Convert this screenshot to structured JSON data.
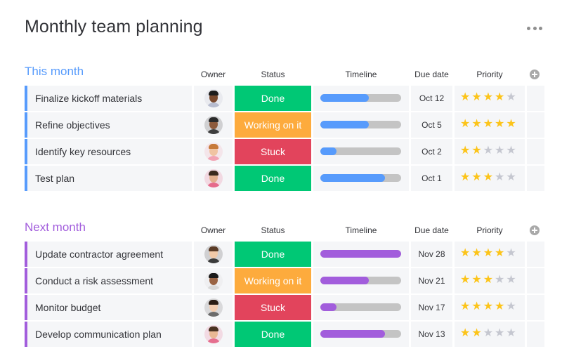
{
  "page": {
    "title": "Monthly team planning"
  },
  "columns": {
    "owner": "Owner",
    "status": "Status",
    "timeline": "Timeline",
    "due_date": "Due date",
    "priority": "Priority"
  },
  "colors": {
    "this_month": "#579bfc",
    "next_month": "#a25ddc",
    "done": "#00c875",
    "working": "#fdab3d",
    "stuck": "#e2445c",
    "star_on": "#fcc419",
    "star_off": "#c5c7d0"
  },
  "groups": [
    {
      "title": "This month",
      "color": "#579bfc",
      "rows": [
        {
          "name": "Finalize kickoff materials",
          "owner_icon": "man-avatar-icon",
          "status": "Done",
          "status_color": "#00c875",
          "timeline_progress": 0.6,
          "due": "Oct 12",
          "priority": 4
        },
        {
          "name": "Refine objectives",
          "owner_icon": "man-avatar-icon",
          "status": "Working on it",
          "status_color": "#fdab3d",
          "timeline_progress": 0.6,
          "due": "Oct 5",
          "priority": 5
        },
        {
          "name": "Identify key resources",
          "owner_icon": "woman-avatar-icon",
          "status": "Stuck",
          "status_color": "#e2445c",
          "timeline_progress": 0.2,
          "due": "Oct 2",
          "priority": 2
        },
        {
          "name": "Test plan",
          "owner_icon": "man-avatar-icon",
          "status": "Done",
          "status_color": "#00c875",
          "timeline_progress": 0.8,
          "due": "Oct 1",
          "priority": 3
        }
      ]
    },
    {
      "title": "Next month",
      "color": "#a25ddc",
      "rows": [
        {
          "name": "Update contractor agreement",
          "owner_icon": "man-avatar-icon",
          "status": "Done",
          "status_color": "#00c875",
          "timeline_progress": 1.0,
          "due": "Nov 28",
          "priority": 4
        },
        {
          "name": "Conduct a risk assessment",
          "owner_icon": "man-avatar-icon",
          "status": "Working on it",
          "status_color": "#fdab3d",
          "timeline_progress": 0.6,
          "due": "Nov  21",
          "priority": 3
        },
        {
          "name": "Monitor budget",
          "owner_icon": "woman-avatar-icon",
          "status": "Stuck",
          "status_color": "#e2445c",
          "timeline_progress": 0.2,
          "due": "Nov  17",
          "priority": 4
        },
        {
          "name": "Develop communication plan",
          "owner_icon": "man-avatar-icon",
          "status": "Done",
          "status_color": "#00c875",
          "timeline_progress": 0.8,
          "due": "Nov  13",
          "priority": 2
        }
      ]
    }
  ]
}
